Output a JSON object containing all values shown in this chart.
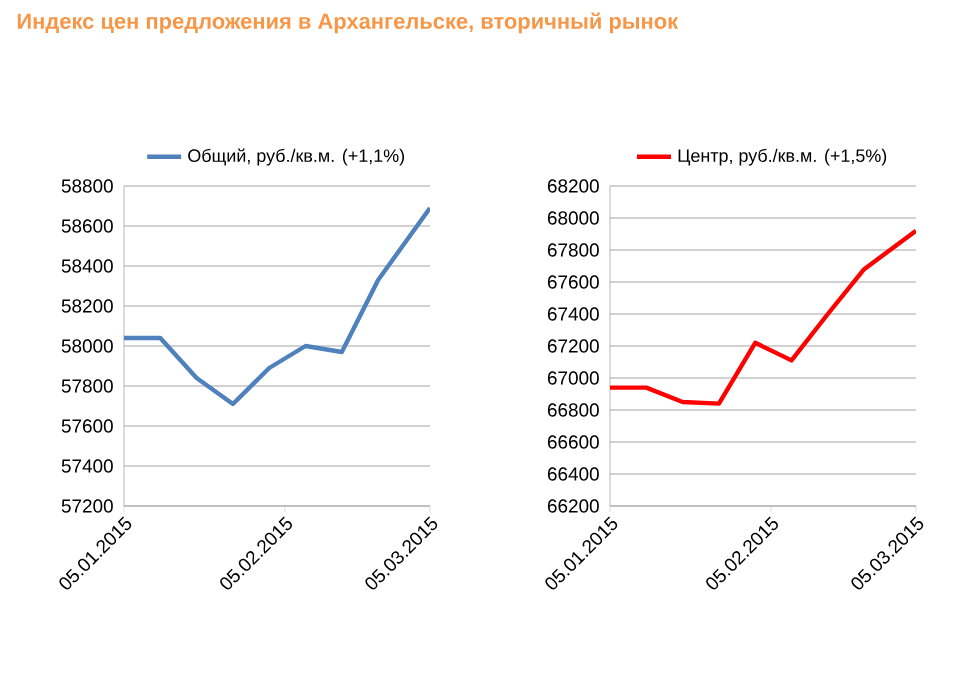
{
  "chart_data": [
    {
      "type": "line",
      "title": "Индекс цен предложения в Архангельске, вторичный рынок",
      "x": [
        "2015-01-05",
        "2015-01-12",
        "2015-01-19",
        "2015-01-26",
        "2015-02-02",
        "2015-02-09",
        "2015-02-16",
        "2015-02-23",
        "2015-03-05"
      ],
      "series": [
        {
          "name": "Общий, руб./кв.м. (+1,1%)",
          "color": "#4f81bd",
          "values": [
            58040,
            58040,
            57840,
            57710,
            57890,
            58000,
            57970,
            58330,
            58690
          ]
        }
      ],
      "xlim": [
        "2015-01-05",
        "2015-03-05"
      ],
      "xticks": [
        {
          "value": "2015-01-05",
          "label": "05.01.2015"
        },
        {
          "value": "2015-02-05",
          "label": "05.02.2015"
        },
        {
          "value": "2015-03-05",
          "label": "05.03.2015"
        }
      ],
      "ylim": [
        57200,
        58800
      ],
      "yticks": [
        57200,
        57400,
        57600,
        57800,
        58000,
        58200,
        58400,
        58600,
        58800
      ],
      "grid": "y",
      "legend": "top",
      "marker": "none"
    },
    {
      "type": "line",
      "x": [
        "2015-01-05",
        "2015-01-12",
        "2015-01-19",
        "2015-01-26",
        "2015-02-02",
        "2015-02-09",
        "2015-02-16",
        "2015-02-23",
        "2015-03-05"
      ],
      "series": [
        {
          "name": "Центр, руб./кв.м. (+1,5%)",
          "color": "#ff0000",
          "values": [
            66940,
            66940,
            66850,
            66840,
            67220,
            67110,
            67400,
            67680,
            67920
          ]
        }
      ],
      "xlim": [
        "2015-01-05",
        "2015-03-05"
      ],
      "xticks": [
        {
          "value": "2015-01-05",
          "label": "05.01.2015"
        },
        {
          "value": "2015-02-05",
          "label": "05.02.2015"
        },
        {
          "value": "2015-03-05",
          "label": "05.03.2015"
        }
      ],
      "ylim": [
        66200,
        68200
      ],
      "yticks": [
        66200,
        66400,
        66600,
        66800,
        67000,
        67200,
        67400,
        67600,
        67800,
        68000,
        68200
      ],
      "grid": "y",
      "legend": "top",
      "marker": "none"
    }
  ]
}
